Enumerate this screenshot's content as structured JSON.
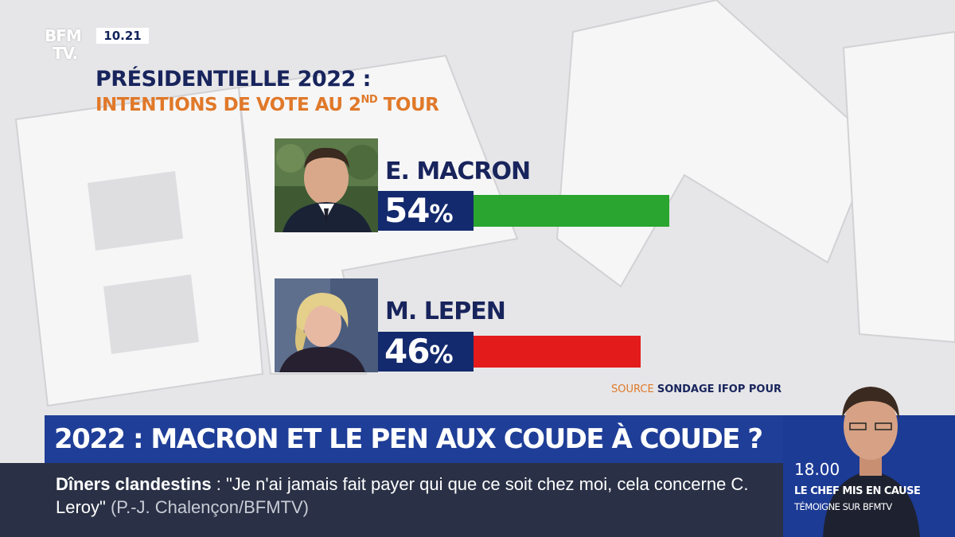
{
  "logo": {
    "line1": "BFM",
    "line2": "TV."
  },
  "clock": "10.21",
  "title": {
    "line1": "PRÉSIDENTIELLE 2022 :",
    "line2_pre": "INTENTIONS DE VOTE AU 2",
    "line2_sup": "ND",
    "line2_post": " TOUR"
  },
  "chart_data": {
    "type": "bar",
    "categories": [
      "E. MACRON",
      "M. LEPEN"
    ],
    "values": [
      54,
      46
    ],
    "labels": [
      "54",
      "46"
    ],
    "unit": "%",
    "colors": [
      "#2aa52f",
      "#e31b1b"
    ]
  },
  "source": {
    "label": "SOURCE",
    "text": "SONDAGE IFOP POUR LE JDD"
  },
  "headline": "2022 : MACRON ET LE PEN AUX COUDE À COUDE ?",
  "ticker": {
    "topic": "Dîners clandestins",
    "separator": " : ",
    "quote": "\"Je n'ai jamais fait payer qui que ce soit chez moi, cela concerne C. Leroy\"",
    "credit": " (P.-J. Chalençon/BFMTV)"
  },
  "side_panel": {
    "time": "18.00",
    "line1": "LE CHEF MIS EN CAUSE",
    "line2": "TÉMOIGNE SUR BFMTV"
  },
  "colors": {
    "navy": "#18245c",
    "orange": "#e0792a",
    "blue": "#1f3e98",
    "green": "#2aa52f",
    "red": "#e31b1b"
  }
}
